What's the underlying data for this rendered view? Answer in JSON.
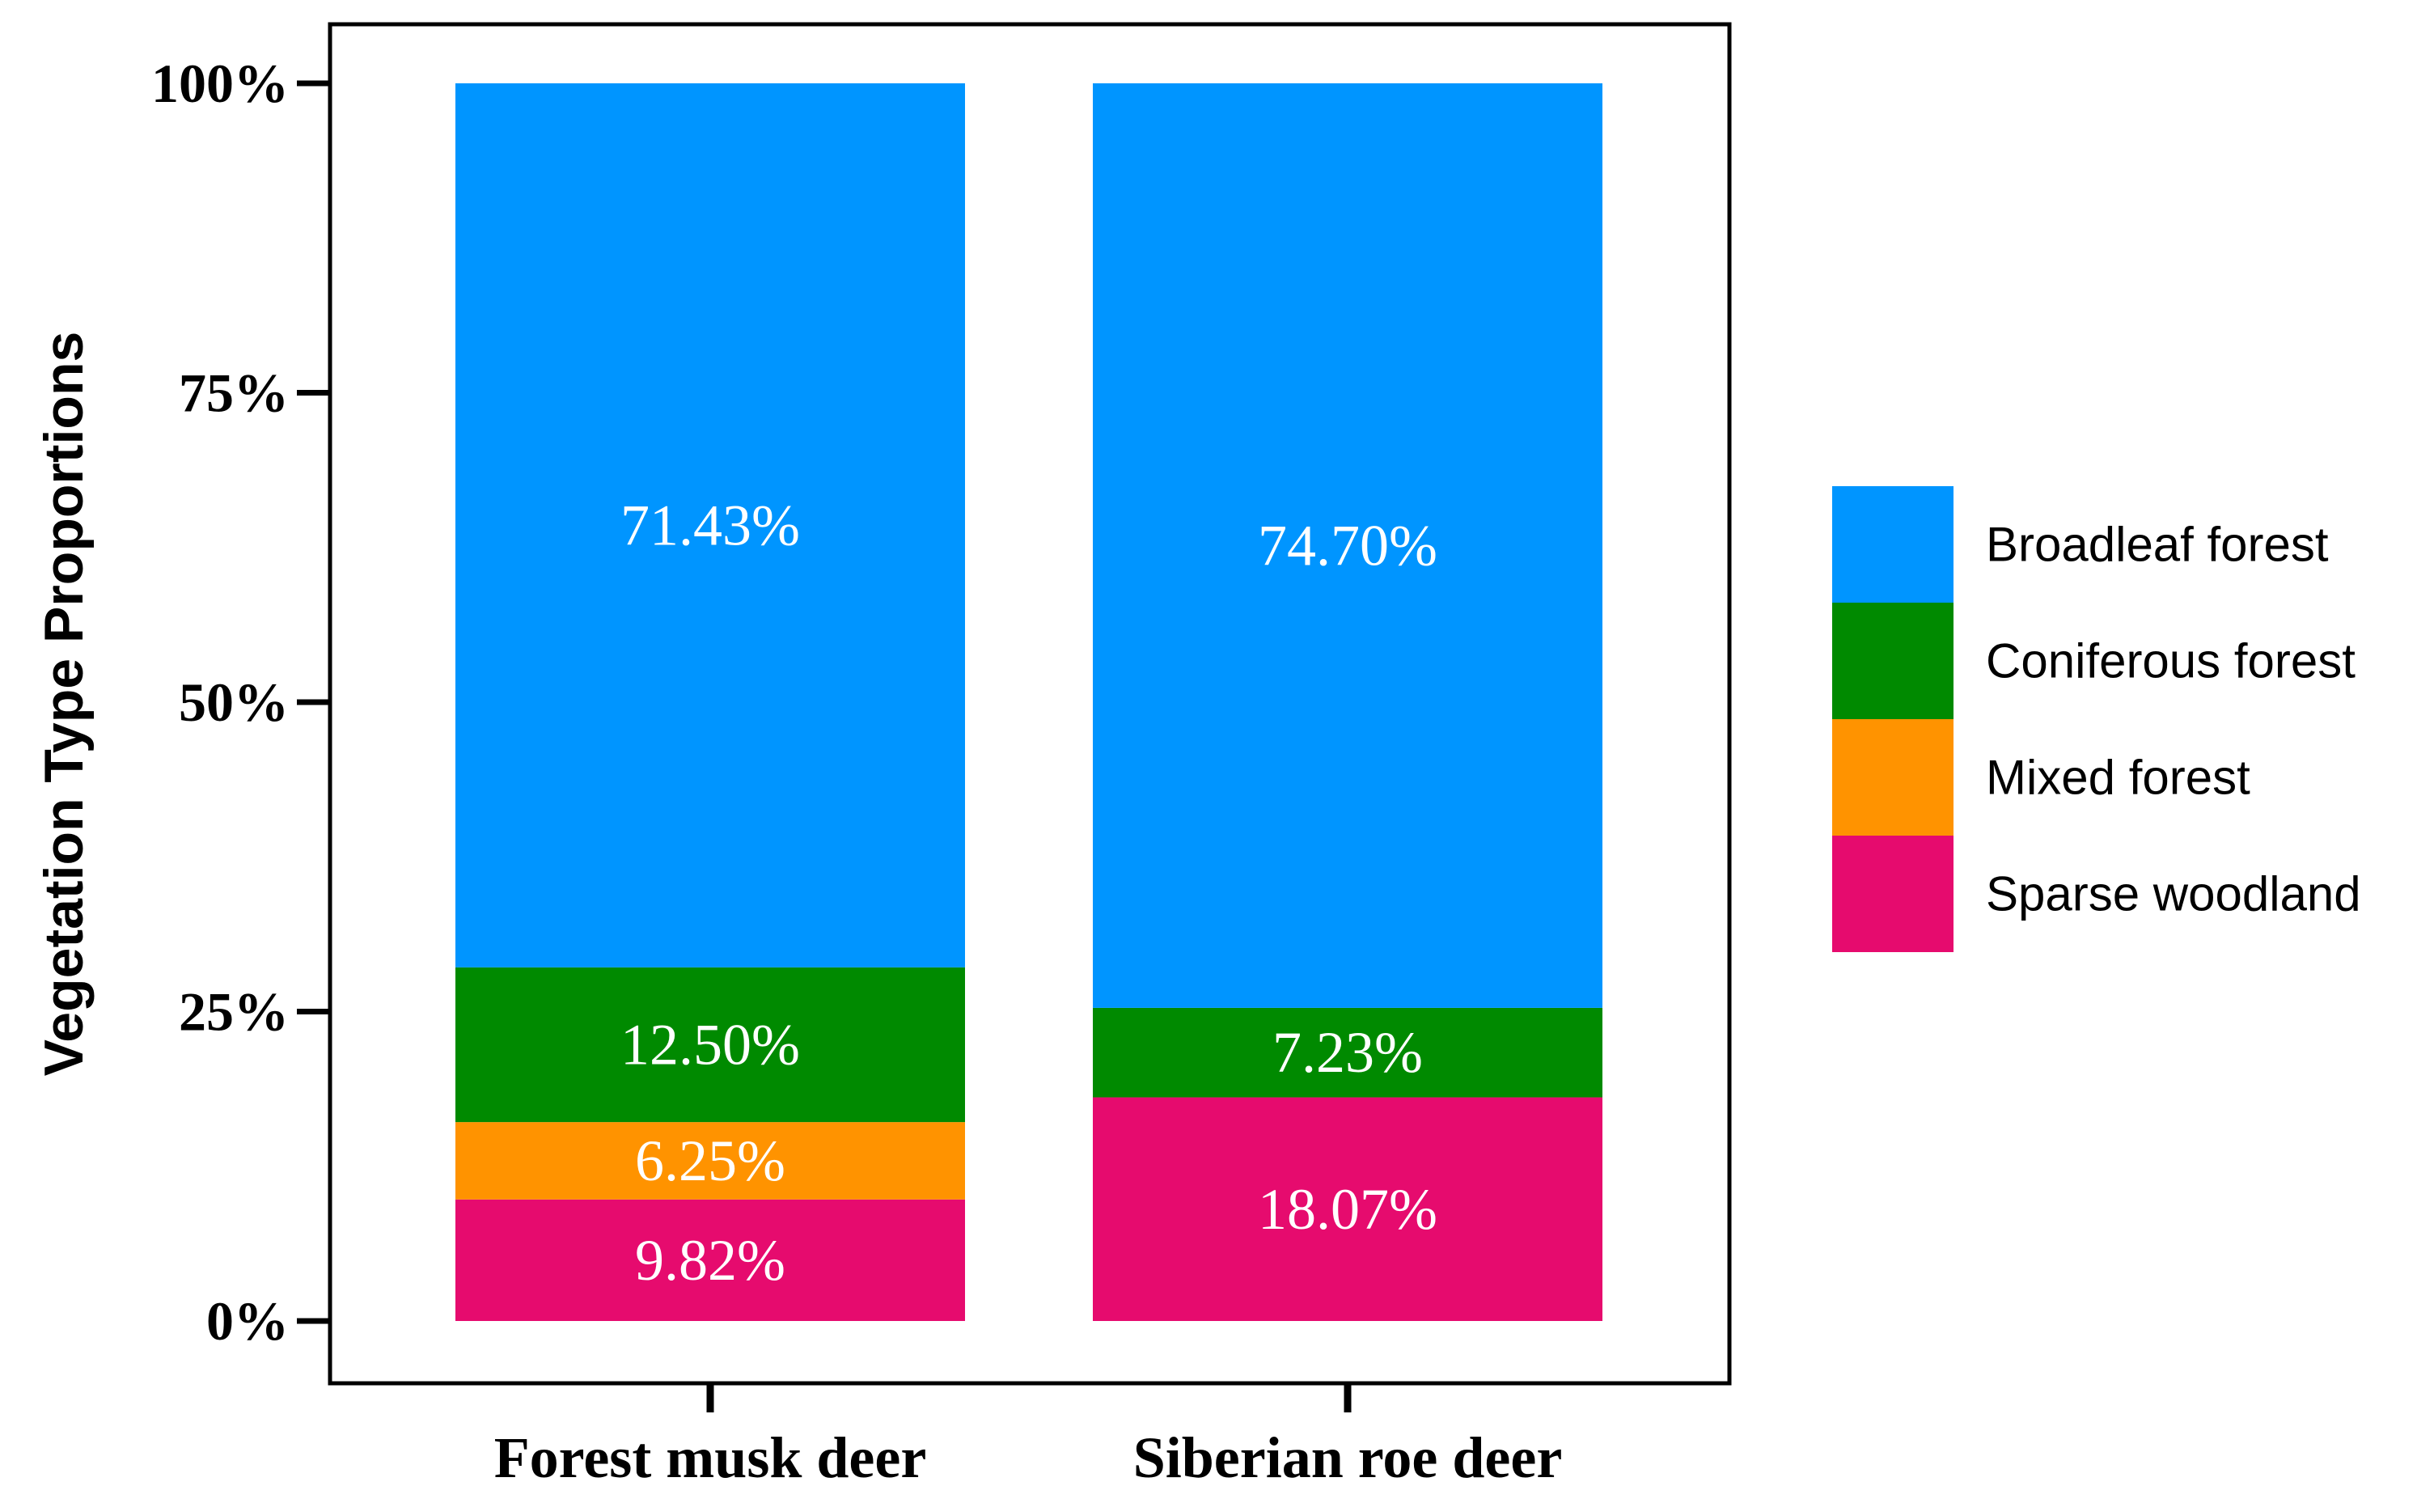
{
  "chart_data": {
    "type": "bar",
    "stacked": true,
    "percent_stacked": true,
    "categories": [
      "Forest musk deer",
      "Siberian roe deer"
    ],
    "series": [
      {
        "name": "Sparse woodland",
        "values": [
          9.82,
          18.07
        ],
        "labels": [
          "9.82%",
          "18.07%"
        ],
        "color": "#E60B6E"
      },
      {
        "name": "Mixed forest",
        "values": [
          6.25,
          0
        ],
        "labels": [
          "6.25%",
          ""
        ],
        "color": "#FF9300"
      },
      {
        "name": "Coniferous forest",
        "values": [
          12.5,
          7.23
        ],
        "labels": [
          "12.50%",
          "7.23%"
        ],
        "color": "#008A00"
      },
      {
        "name": "Broadleaf forest",
        "values": [
          71.43,
          74.7
        ],
        "labels": [
          "71.43%",
          "74.70%"
        ],
        "color": "#0095FF"
      }
    ],
    "legend_order": [
      "Broadleaf forest",
      "Coniferous forest",
      "Mixed forest",
      "Sparse woodland"
    ],
    "xlabel": "",
    "ylabel": "Vegetation Type Proportions",
    "ylim": [
      0,
      100
    ],
    "yticks": [
      0,
      25,
      50,
      75,
      100
    ],
    "ytick_labels": [
      "0%",
      "25%",
      "50%",
      "75%",
      "100%"
    ],
    "legend_position": "right",
    "grid": false
  }
}
